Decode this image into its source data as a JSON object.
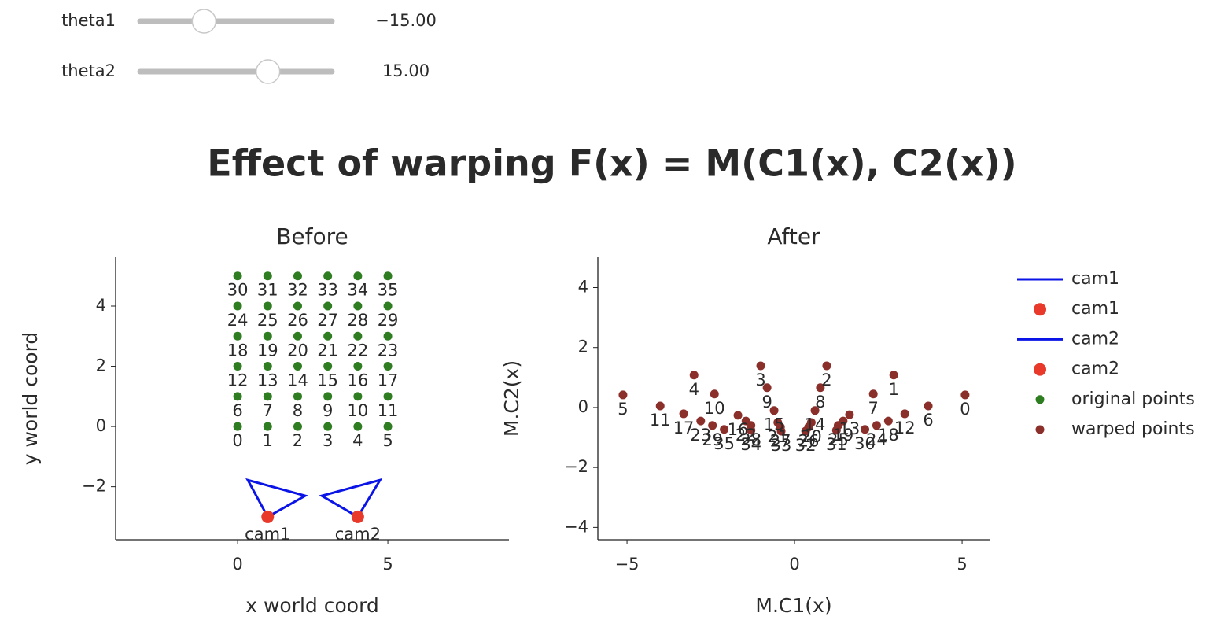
{
  "controls": [
    {
      "label": "theta1",
      "value": -15,
      "value_label": "−15.00",
      "range": [
        -45,
        45
      ]
    },
    {
      "label": "theta2",
      "value": 15,
      "value_label": "15.00",
      "range": [
        -45,
        45
      ]
    }
  ],
  "title": "Effect of warping F(x) = M(C1(x), C2(x))",
  "chart_data": [
    {
      "type": "scatter",
      "title": "Before",
      "x_label": "x world coord",
      "y_label": "y world coord",
      "xlim": [
        -4.06,
        9.03
      ],
      "ylim": [
        -3.76,
        5.62
      ],
      "xticks": [
        0,
        5
      ],
      "yticks": [
        {
          "value": -2,
          "label": "−2"
        },
        0,
        2,
        4
      ],
      "series": [
        {
          "name": "cam1",
          "mode": "lines",
          "color": "#0a14e6",
          "x": [
            1,
            0.34,
            2.25,
            1
          ],
          "y": [
            -3,
            -1.78,
            -2.3,
            -3
          ]
        },
        {
          "name": "cam1",
          "mode": "markers",
          "color": "#e8392b",
          "x": [
            1
          ],
          "y": [
            -3
          ],
          "text": [
            "cam1"
          ]
        },
        {
          "name": "cam2",
          "mode": "lines",
          "color": "#0a14e6",
          "x": [
            4,
            4.74,
            2.8,
            4
          ],
          "y": [
            -3,
            -1.78,
            -2.3,
            -3
          ]
        },
        {
          "name": "cam2",
          "mode": "markers",
          "color": "#e8392b",
          "x": [
            4
          ],
          "y": [
            -3
          ],
          "text": [
            "cam2"
          ]
        },
        {
          "name": "original points",
          "mode": "markers",
          "color": "#2f7d21",
          "x": [
            0,
            1,
            2,
            3,
            4,
            5,
            0,
            1,
            2,
            3,
            4,
            5,
            0,
            1,
            2,
            3,
            4,
            5,
            0,
            1,
            2,
            3,
            4,
            5,
            0,
            1,
            2,
            3,
            4,
            5,
            0,
            1,
            2,
            3,
            4,
            5
          ],
          "y": [
            0,
            0,
            0,
            0,
            0,
            0,
            1,
            1,
            1,
            1,
            1,
            1,
            2,
            2,
            2,
            2,
            2,
            2,
            3,
            3,
            3,
            3,
            3,
            3,
            4,
            4,
            4,
            4,
            4,
            4,
            5,
            5,
            5,
            5,
            5,
            5
          ],
          "text": [
            "0",
            "1",
            "2",
            "3",
            "4",
            "5",
            "6",
            "7",
            "8",
            "9",
            "10",
            "11",
            "12",
            "13",
            "14",
            "15",
            "16",
            "17",
            "18",
            "19",
            "20",
            "21",
            "22",
            "23",
            "24",
            "25",
            "26",
            "27",
            "28",
            "29",
            "30",
            "31",
            "32",
            "33",
            "34",
            "35"
          ]
        }
      ]
    },
    {
      "type": "scatter",
      "title": "After",
      "x_label": "M.C1(x)",
      "y_label": "M.C2(x)",
      "xlim": [
        -5.87,
        5.82
      ],
      "ylim": [
        -4.41,
        5.01
      ],
      "xticks": [
        {
          "value": -5,
          "label": "−5"
        },
        0,
        5
      ],
      "yticks": [
        {
          "value": -4,
          "label": "−4"
        },
        {
          "value": -2,
          "label": "−2"
        },
        0,
        2,
        4
      ],
      "series": [
        {
          "name": "warped points",
          "mode": "markers",
          "color": "#8b2f2b",
          "x": [
            5.09,
            2.96,
            0.96,
            -1.01,
            -3.0,
            -5.12,
            3.99,
            2.35,
            0.77,
            -0.82,
            -2.39,
            -4.01,
            3.29,
            1.64,
            0.61,
            -0.61,
            -1.69,
            -3.31,
            2.8,
            1.45,
            0.5,
            -0.5,
            -1.45,
            -2.8,
            2.45,
            1.3,
            0.42,
            -0.42,
            -1.3,
            -2.45,
            2.1,
            1.25,
            0.33,
            -0.4,
            -1.3,
            -2.1
          ],
          "y": [
            0.42,
            1.08,
            1.39,
            1.39,
            1.08,
            0.42,
            0.05,
            0.45,
            0.66,
            0.66,
            0.45,
            0.05,
            -0.21,
            -0.24,
            -0.1,
            -0.1,
            -0.26,
            -0.21,
            -0.45,
            -0.45,
            -0.5,
            -0.5,
            -0.45,
            -0.45,
            -0.6,
            -0.6,
            -0.65,
            -0.65,
            -0.6,
            -0.6,
            -0.73,
            -0.76,
            -0.79,
            -0.79,
            -0.76,
            -0.73
          ],
          "text": [
            "0",
            "1",
            "2",
            "3",
            "4",
            "5",
            "6",
            "7",
            "8",
            "9",
            "10",
            "11",
            "12",
            "13",
            "14",
            "15",
            "16",
            "17",
            "18",
            "19",
            "20",
            "21",
            "22",
            "23",
            "24",
            "25",
            "26",
            "27",
            "28",
            "29",
            "30",
            "31",
            "32",
            "33",
            "34",
            "35"
          ]
        }
      ]
    }
  ]
}
